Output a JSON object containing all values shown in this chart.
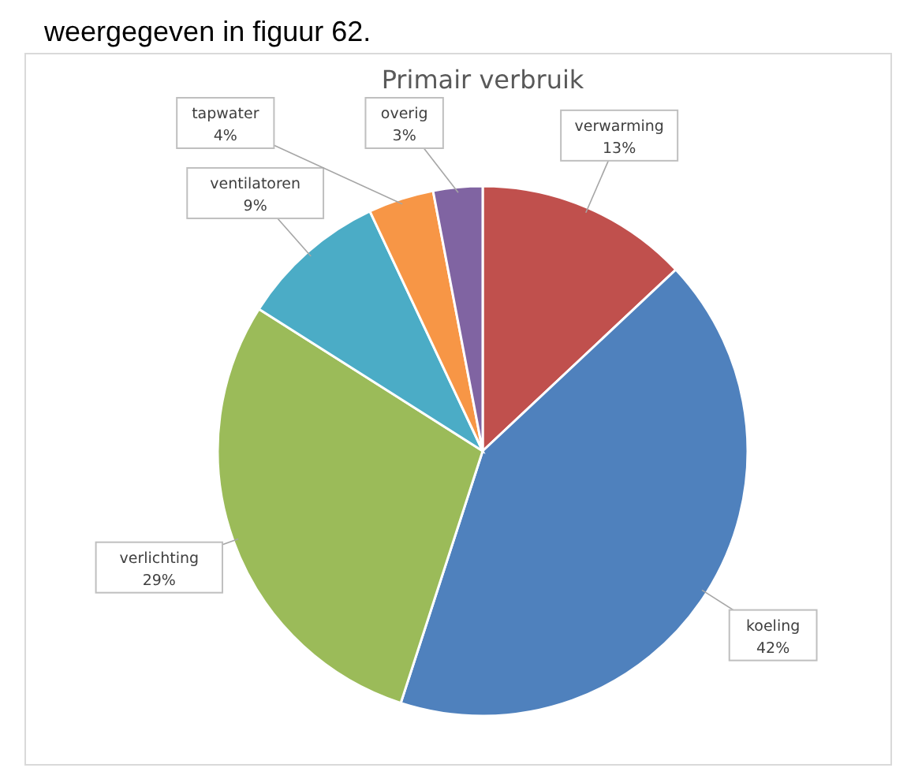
{
  "chart_data": {
    "type": "pie",
    "title": "Primair verbruik",
    "annotations": [
      "weergegeven in figuur 62."
    ],
    "categories": [
      "verwarming",
      "koeling",
      "verlichting",
      "ventilatoren",
      "tapwater",
      "overig"
    ],
    "values": [
      13,
      42,
      29,
      9,
      4,
      3
    ],
    "colors": [
      "#c0504d",
      "#4f81bd",
      "#9bbb59",
      "#4bacc6",
      "#f79646",
      "#8064a2"
    ],
    "value_labels": [
      "13%",
      "42%",
      "29%",
      "9%",
      "4%",
      "3%"
    ]
  }
}
